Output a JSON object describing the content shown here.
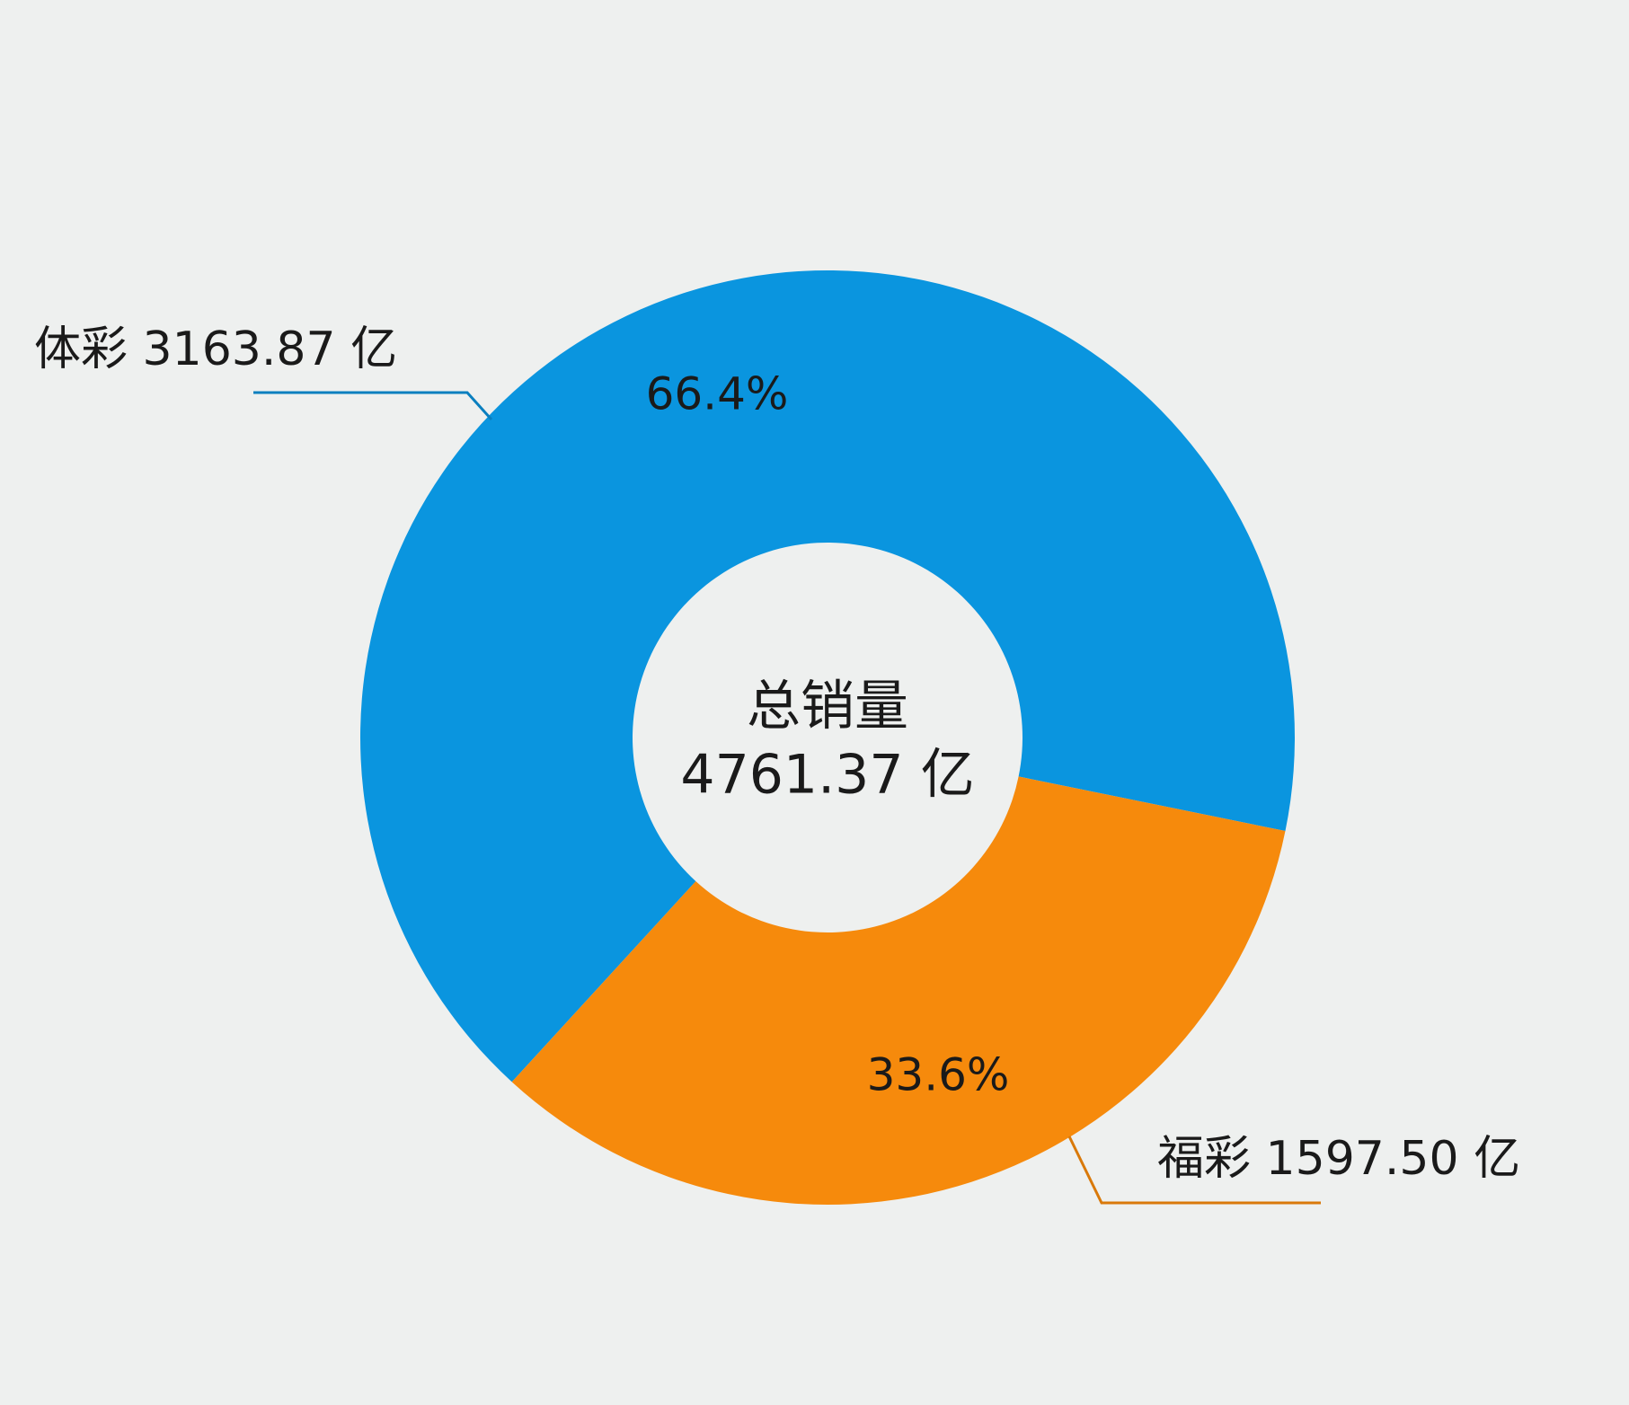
{
  "chart_data": {
    "type": "donut",
    "categories": [
      "体彩",
      "福彩"
    ],
    "values": [
      66.4,
      33.6
    ],
    "value_labels": [
      "66.4%",
      "33.6%"
    ],
    "colors": [
      "#0a95df",
      "#f68a0c"
    ],
    "outer_labels": [
      "体彩 3163.87 亿",
      "福彩 1597.50 亿"
    ],
    "center_title": "总销量",
    "center_label": "4761.37 亿"
  }
}
